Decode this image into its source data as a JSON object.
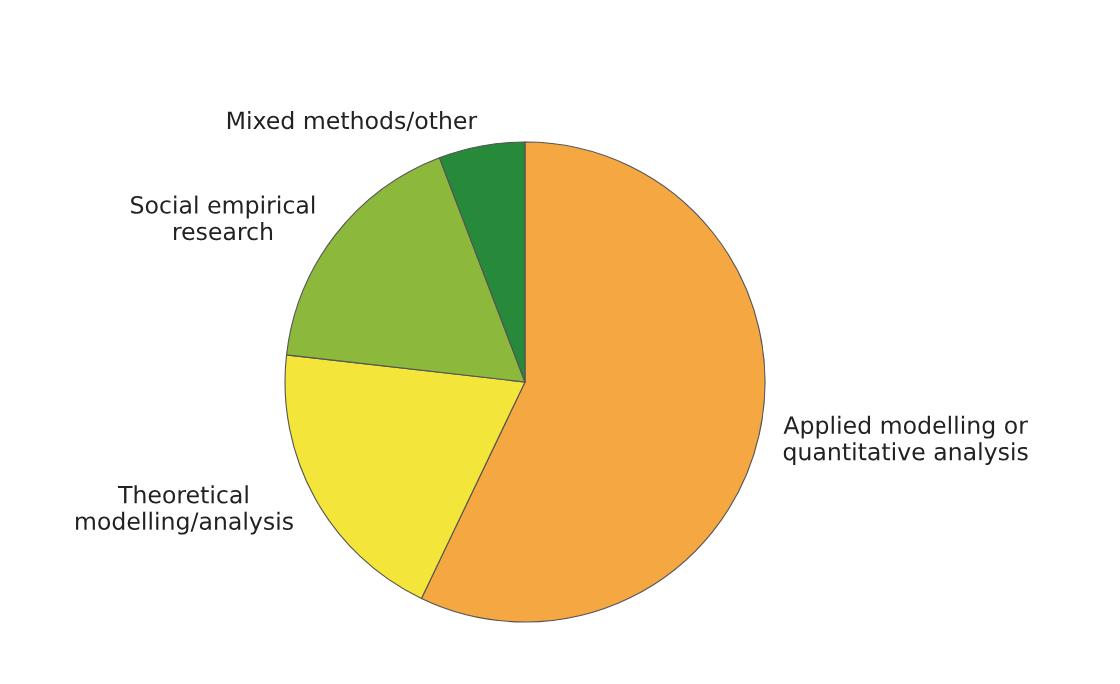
{
  "chart_data": {
    "type": "pie",
    "categories": [
      "Applied modelling or\nquantitative analysis",
      "Theoretical\nmodelling/analysis",
      "Social empirical\nresearch",
      "Mixed methods/other"
    ],
    "values": [
      57.1,
      19.7,
      17.4,
      5.8
    ],
    "colors": [
      "#f5a742",
      "#f4e53a",
      "#8cb93c",
      "#268a3a"
    ]
  }
}
